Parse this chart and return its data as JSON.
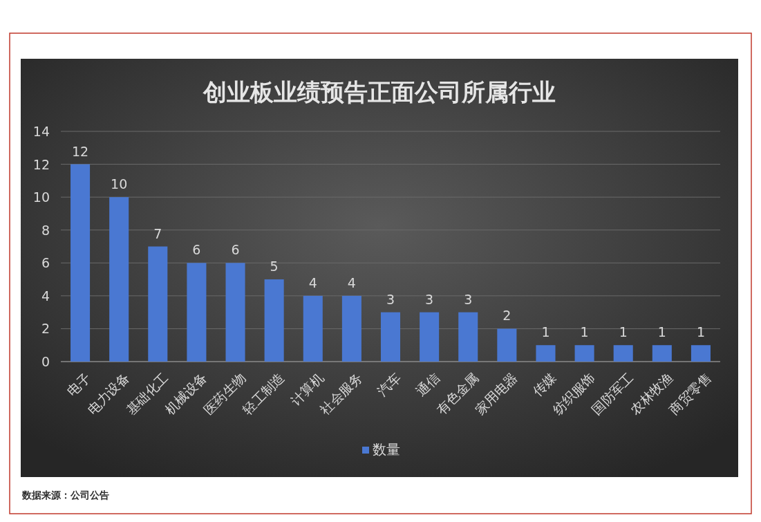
{
  "chart_data": {
    "type": "bar",
    "title": "创业板业绩预告正面公司所属行业",
    "categories": [
      "电子",
      "电力设备",
      "基础化工",
      "机械设备",
      "医药生物",
      "轻工制造",
      "计算机",
      "社会服务",
      "汽车",
      "通信",
      "有色金属",
      "家用电器",
      "传媒",
      "纺织服饰",
      "国防军工",
      "农林牧渔",
      "商贸零售"
    ],
    "series": [
      {
        "name": "数量",
        "color": "#4a78d2",
        "values": [
          12,
          10,
          7,
          6,
          6,
          5,
          4,
          4,
          3,
          3,
          3,
          2,
          1,
          1,
          1,
          1,
          1
        ]
      }
    ],
    "ylim": [
      0,
      14
    ],
    "yticks": [
      0,
      2,
      4,
      6,
      8,
      10,
      12,
      14
    ],
    "grid": "y",
    "legend": "bottom",
    "data_labels": true,
    "annotations": [
      "数据来源：公司公告"
    ]
  }
}
